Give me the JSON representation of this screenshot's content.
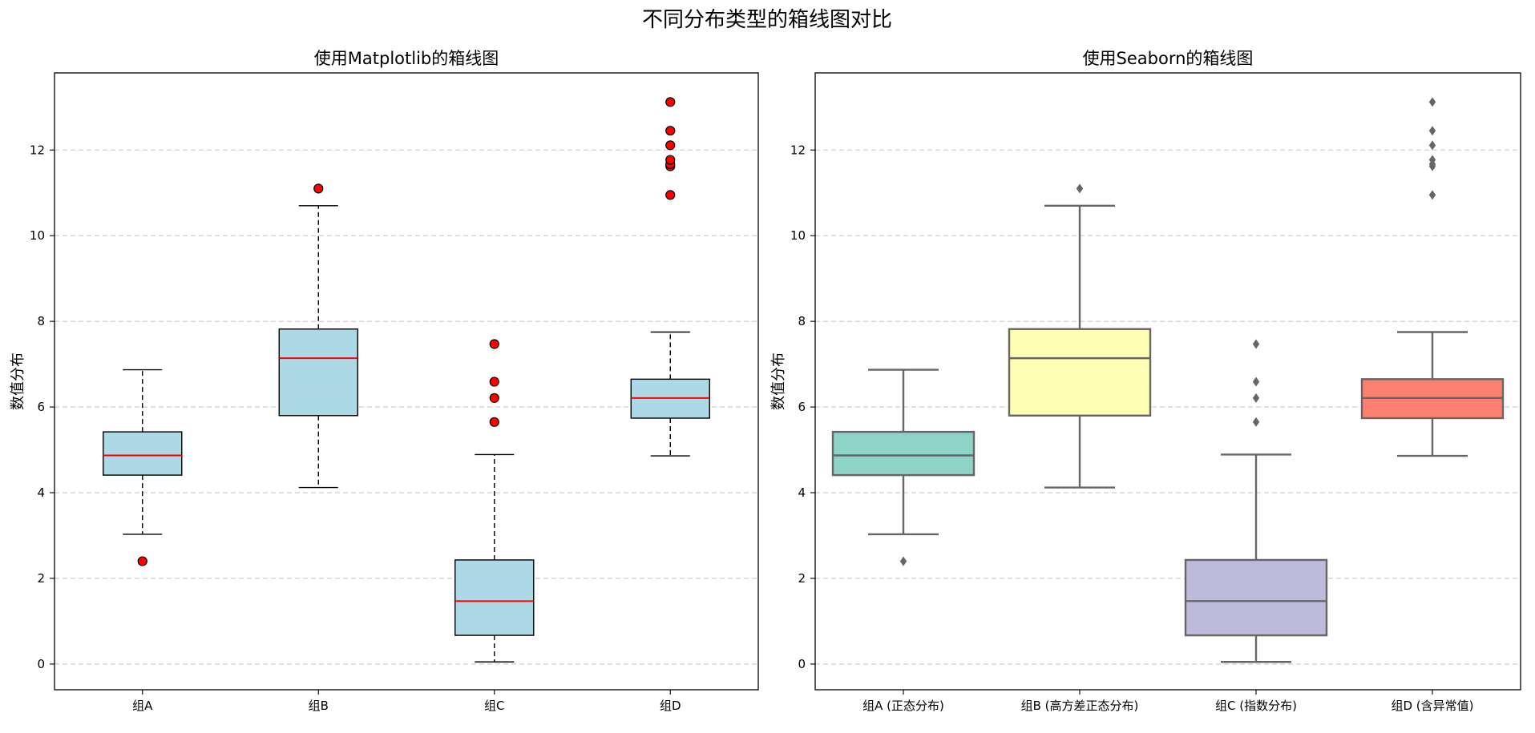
{
  "figure": {
    "suptitle": "不同分布类型的箱线图对比"
  },
  "chart_data": [
    {
      "type": "box",
      "title": "使用Matplotlib的箱线图",
      "xlabel": "",
      "ylabel": "数值分布",
      "categories": [
        "组A",
        "组B",
        "组C",
        "组D"
      ],
      "ylim": [
        -0.6,
        13.8
      ],
      "yticks": [
        0,
        2,
        4,
        6,
        8,
        10,
        12
      ],
      "grid": "y-dashed",
      "style": {
        "box_fill": "#add8e6",
        "box_edge": "#000000",
        "median": "#ff0000",
        "whisker_dash": "dashed",
        "flier_fill": "#ff0000",
        "flier_shape": "circle"
      },
      "boxes": [
        {
          "category": "组A",
          "whisker_low": 3.03,
          "q1": 4.41,
          "median": 4.87,
          "q3": 5.42,
          "whisker_high": 6.87,
          "fliers": [
            2.4
          ]
        },
        {
          "category": "组B",
          "whisker_low": 4.12,
          "q1": 5.8,
          "median": 7.14,
          "q3": 7.82,
          "whisker_high": 10.7,
          "fliers": [
            11.1
          ]
        },
        {
          "category": "组C",
          "whisker_low": 0.05,
          "q1": 0.67,
          "median": 1.47,
          "q3": 2.43,
          "whisker_high": 4.89,
          "fliers": [
            5.65,
            6.21,
            6.59,
            7.47
          ]
        },
        {
          "category": "组D",
          "whisker_low": 4.86,
          "q1": 5.74,
          "median": 6.21,
          "q3": 6.65,
          "whisker_high": 7.75,
          "fliers": [
            10.95,
            11.62,
            11.67,
            11.77,
            12.11,
            12.45,
            13.12
          ]
        }
      ]
    },
    {
      "type": "box",
      "title": "使用Seaborn的箱线图",
      "xlabel": "",
      "ylabel": "数值分布",
      "categories": [
        "组A (正态分布)",
        "组B (高方差正态分布)",
        "组C (指数分布)",
        "组D (含异常值)"
      ],
      "ylim": [
        -0.6,
        13.8
      ],
      "yticks": [
        0,
        2,
        4,
        6,
        8,
        10,
        12
      ],
      "grid": "y-dashed",
      "style": {
        "palette": [
          "#8dd3c7",
          "#ffffb3",
          "#bebada",
          "#fb8072"
        ],
        "line_color": "#666666",
        "flier_fill": "#666666",
        "flier_shape": "diamond"
      },
      "boxes": [
        {
          "category": "组A (正态分布)",
          "whisker_low": 3.03,
          "q1": 4.41,
          "median": 4.87,
          "q3": 5.42,
          "whisker_high": 6.87,
          "fliers": [
            2.4
          ]
        },
        {
          "category": "组B (高方差正态分布)",
          "whisker_low": 4.12,
          "q1": 5.8,
          "median": 7.14,
          "q3": 7.82,
          "whisker_high": 10.7,
          "fliers": [
            11.1
          ]
        },
        {
          "category": "组C (指数分布)",
          "whisker_low": 0.05,
          "q1": 0.67,
          "median": 1.47,
          "q3": 2.43,
          "whisker_high": 4.89,
          "fliers": [
            5.65,
            6.21,
            6.59,
            7.47
          ]
        },
        {
          "category": "组D (含异常值)",
          "whisker_low": 4.86,
          "q1": 5.74,
          "median": 6.21,
          "q3": 6.65,
          "whisker_high": 7.75,
          "fliers": [
            10.95,
            11.62,
            11.67,
            11.77,
            12.11,
            12.45,
            13.12
          ]
        }
      ]
    }
  ]
}
